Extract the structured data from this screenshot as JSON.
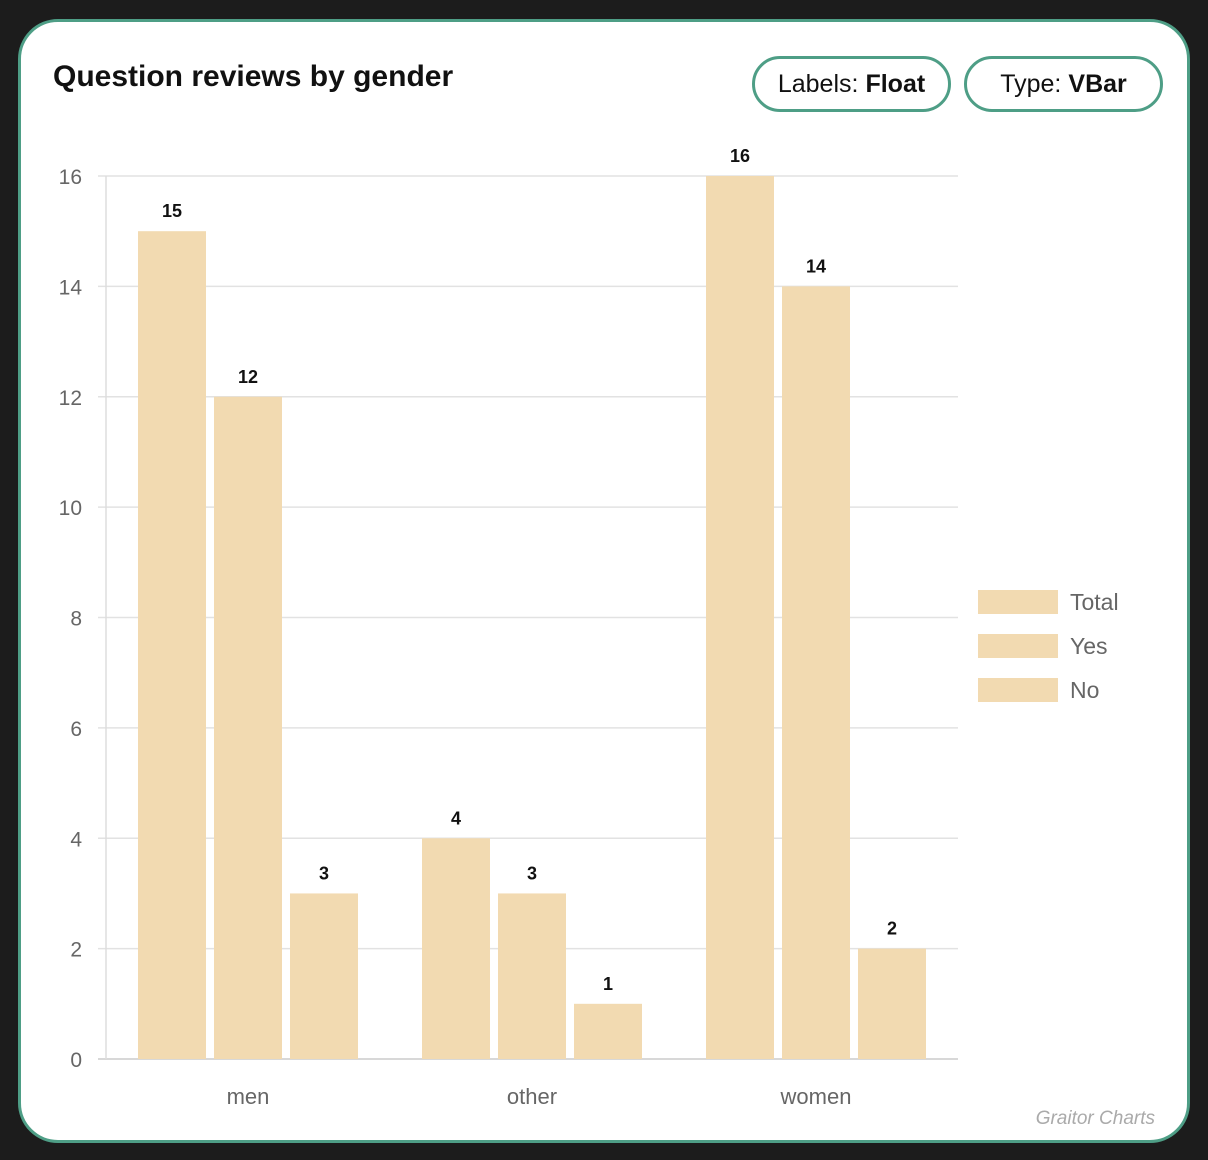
{
  "card": {
    "title": "Question reviews by gender",
    "credit": "Graitor Charts"
  },
  "controls": {
    "labels": {
      "prefix": "Labels:",
      "value": "Float"
    },
    "type": {
      "prefix": "Type:",
      "value": "VBar"
    }
  },
  "colors": {
    "border": "#4e9e86",
    "bar": "#f2dab1",
    "grid": "#e2e2e2",
    "axis_text": "#666666"
  },
  "chart_data": {
    "type": "bar",
    "title": "Question reviews by gender",
    "categories": [
      "men",
      "other",
      "women"
    ],
    "series": [
      {
        "name": "Total",
        "values": [
          15,
          4,
          16
        ]
      },
      {
        "name": "Yes",
        "values": [
          12,
          3,
          14
        ]
      },
      {
        "name": "No",
        "values": [
          3,
          1,
          2
        ]
      }
    ],
    "ylim": [
      0,
      16
    ],
    "yticks": [
      0,
      2,
      4,
      6,
      8,
      10,
      12,
      14,
      16
    ],
    "grid": true,
    "legend": "right",
    "data_labels": true
  }
}
